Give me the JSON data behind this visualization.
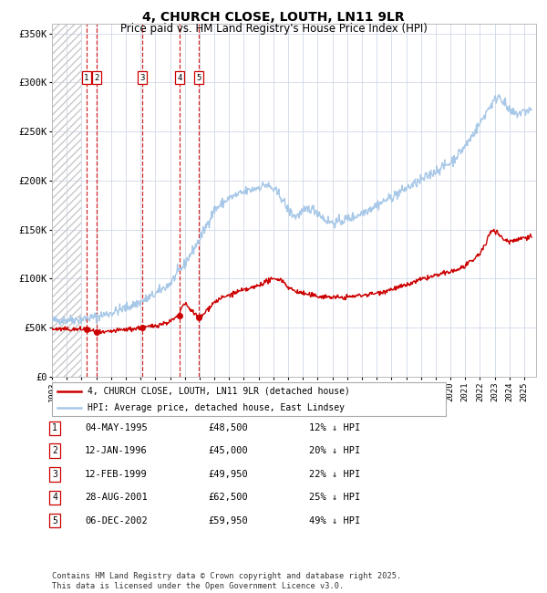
{
  "title": "4, CHURCH CLOSE, LOUTH, LN11 9LR",
  "subtitle": "Price paid vs. HM Land Registry's House Price Index (HPI)",
  "title_fontsize": 10,
  "subtitle_fontsize": 8.5,
  "xlim_start": 1993.0,
  "xlim_end": 2025.8,
  "ylim_min": 0,
  "ylim_max": 360000,
  "yticks": [
    0,
    50000,
    100000,
    150000,
    200000,
    250000,
    300000,
    350000
  ],
  "ytick_labels": [
    "£0",
    "£50K",
    "£100K",
    "£150K",
    "£200K",
    "£250K",
    "£300K",
    "£350K"
  ],
  "hpi_color": "#a8c8e8",
  "price_color": "#cc0000",
  "grid_color": "#d0d8e8",
  "sale_points": [
    {
      "num": 1,
      "date": 1995.34,
      "price": 48500
    },
    {
      "num": 2,
      "date": 1996.04,
      "price": 45000
    },
    {
      "num": 3,
      "date": 1999.12,
      "price": 49950
    },
    {
      "num": 4,
      "date": 2001.65,
      "price": 62500
    },
    {
      "num": 5,
      "date": 2002.92,
      "price": 59950
    }
  ],
  "legend_entries": [
    "4, CHURCH CLOSE, LOUTH, LN11 9LR (detached house)",
    "HPI: Average price, detached house, East Lindsey"
  ],
  "table_rows": [
    {
      "num": 1,
      "date": "04-MAY-1995",
      "price": "£48,500",
      "hpi": "12% ↓ HPI"
    },
    {
      "num": 2,
      "date": "12-JAN-1996",
      "price": "£45,000",
      "hpi": "20% ↓ HPI"
    },
    {
      "num": 3,
      "date": "12-FEB-1999",
      "price": "£49,950",
      "hpi": "22% ↓ HPI"
    },
    {
      "num": 4,
      "date": "28-AUG-2001",
      "price": "£62,500",
      "hpi": "25% ↓ HPI"
    },
    {
      "num": 5,
      "date": "06-DEC-2002",
      "price": "£59,950",
      "hpi": "49% ↓ HPI"
    }
  ],
  "footnote": "Contains HM Land Registry data © Crown copyright and database right 2025.\nThis data is licensed under the Open Government Licence v3.0.",
  "xtick_years": [
    1993,
    1994,
    1995,
    1996,
    1997,
    1998,
    1999,
    2000,
    2001,
    2002,
    2003,
    2004,
    2005,
    2006,
    2007,
    2008,
    2009,
    2010,
    2011,
    2012,
    2013,
    2014,
    2015,
    2016,
    2017,
    2018,
    2019,
    2020,
    2021,
    2022,
    2023,
    2024,
    2025
  ],
  "hpi_keypoints": [
    [
      1993.0,
      57000
    ],
    [
      1994.0,
      58000
    ],
    [
      1995.0,
      58500
    ],
    [
      1996.0,
      61000
    ],
    [
      1997.0,
      65000
    ],
    [
      1998.0,
      70000
    ],
    [
      1999.0,
      76000
    ],
    [
      2000.0,
      84000
    ],
    [
      2001.0,
      95000
    ],
    [
      2002.0,
      115000
    ],
    [
      2003.0,
      140000
    ],
    [
      2004.0,
      170000
    ],
    [
      2005.0,
      182000
    ],
    [
      2006.0,
      188000
    ],
    [
      2007.0,
      193000
    ],
    [
      2007.5,
      196000
    ],
    [
      2008.0,
      191000
    ],
    [
      2008.5,
      184000
    ],
    [
      2009.0,
      170000
    ],
    [
      2009.5,
      163000
    ],
    [
      2010.0,
      168000
    ],
    [
      2010.5,
      172000
    ],
    [
      2011.0,
      168000
    ],
    [
      2011.5,
      160000
    ],
    [
      2012.0,
      157000
    ],
    [
      2012.5,
      158000
    ],
    [
      2013.0,
      161000
    ],
    [
      2013.5,
      163000
    ],
    [
      2014.0,
      167000
    ],
    [
      2015.0,
      175000
    ],
    [
      2016.0,
      183000
    ],
    [
      2017.0,
      192000
    ],
    [
      2018.0,
      200000
    ],
    [
      2019.0,
      210000
    ],
    [
      2020.0,
      218000
    ],
    [
      2021.0,
      235000
    ],
    [
      2022.0,
      258000
    ],
    [
      2022.5,
      272000
    ],
    [
      2023.0,
      282000
    ],
    [
      2023.3,
      287000
    ],
    [
      2023.7,
      278000
    ],
    [
      2024.0,
      270000
    ],
    [
      2024.5,
      268000
    ],
    [
      2025.3,
      272000
    ]
  ],
  "pp_keypoints": [
    [
      1993.0,
      48500
    ],
    [
      1994.5,
      48000
    ],
    [
      1995.34,
      48500
    ],
    [
      1995.6,
      47000
    ],
    [
      1996.04,
      45000
    ],
    [
      1996.5,
      44500
    ],
    [
      1997.0,
      46000
    ],
    [
      1997.5,
      47000
    ],
    [
      1998.0,
      48000
    ],
    [
      1998.5,
      48500
    ],
    [
      1999.12,
      49950
    ],
    [
      1999.5,
      50500
    ],
    [
      2000.0,
      52000
    ],
    [
      2000.5,
      54000
    ],
    [
      2001.0,
      56000
    ],
    [
      2001.65,
      62500
    ],
    [
      2001.8,
      72000
    ],
    [
      2002.0,
      74000
    ],
    [
      2002.5,
      67000
    ],
    [
      2002.92,
      59950
    ],
    [
      2003.2,
      62000
    ],
    [
      2003.5,
      68000
    ],
    [
      2004.0,
      76000
    ],
    [
      2004.5,
      80000
    ],
    [
      2005.0,
      83000
    ],
    [
      2005.5,
      86000
    ],
    [
      2006.0,
      88000
    ],
    [
      2006.5,
      90000
    ],
    [
      2007.0,
      93000
    ],
    [
      2007.5,
      97000
    ],
    [
      2008.0,
      99000
    ],
    [
      2008.3,
      100000
    ],
    [
      2008.7,
      97000
    ],
    [
      2009.0,
      91000
    ],
    [
      2009.5,
      87000
    ],
    [
      2010.0,
      85000
    ],
    [
      2010.5,
      83000
    ],
    [
      2011.0,
      82000
    ],
    [
      2011.5,
      81500
    ],
    [
      2012.0,
      81000
    ],
    [
      2012.5,
      80500
    ],
    [
      2013.0,
      81000
    ],
    [
      2013.5,
      82000
    ],
    [
      2014.0,
      83000
    ],
    [
      2014.5,
      84000
    ],
    [
      2015.0,
      85000
    ],
    [
      2015.5,
      87000
    ],
    [
      2016.0,
      89000
    ],
    [
      2016.5,
      91000
    ],
    [
      2017.0,
      93000
    ],
    [
      2017.5,
      96000
    ],
    [
      2018.0,
      99000
    ],
    [
      2018.5,
      101000
    ],
    [
      2019.0,
      103000
    ],
    [
      2019.5,
      105000
    ],
    [
      2020.0,
      107000
    ],
    [
      2020.5,
      109000
    ],
    [
      2021.0,
      113000
    ],
    [
      2021.5,
      118000
    ],
    [
      2022.0,
      126000
    ],
    [
      2022.4,
      135000
    ],
    [
      2022.7,
      148000
    ],
    [
      2022.9,
      150000
    ],
    [
      2023.1,
      148000
    ],
    [
      2023.4,
      143000
    ],
    [
      2023.7,
      139000
    ],
    [
      2024.0,
      138000
    ],
    [
      2024.5,
      140000
    ],
    [
      2025.3,
      143000
    ]
  ]
}
